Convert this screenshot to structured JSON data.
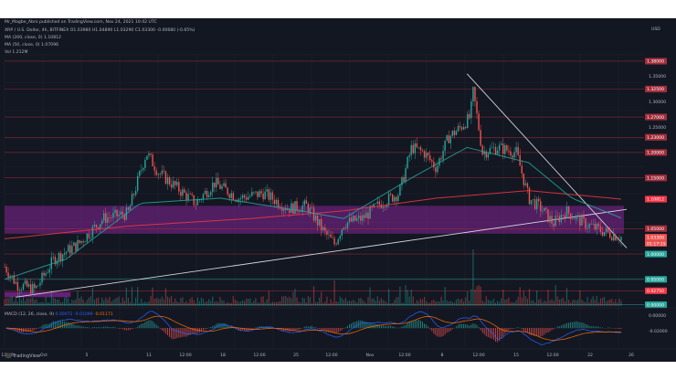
{
  "header": {
    "publisher": "Mr_Magbe_Abro published on TradingView.com, Nov 24, 2021 10:42 UTC",
    "symbol_line": "XRP / U.S. Dollar, 4h, BITFINEX O1.03980 H1.04890 L1.03290 C1.03300 -0.00680 (-0.65%)",
    "ma200": "MA (200, close, 0)  1.10812",
    "ma50": "MA (50, close, 0)  1.07096",
    "vol": "Vol  1.212M",
    "currency": "USD"
  },
  "footer": {
    "brand": "TradingView"
  },
  "colors": {
    "bull": "#26a69a",
    "bear": "#ef5350",
    "ma50": "#26a69a",
    "ma200": "#f23645",
    "zone": "#9c27b0",
    "trendline": "#d1d4dc"
  },
  "chart_data": {
    "type": "candlestick",
    "ylim": [
      0.8975,
      1.3925
    ],
    "date_range": [
      "2021-09-29",
      "2021-11-24"
    ],
    "x_ticks": [
      "12:00",
      "Oct",
      "5",
      "11",
      "12:00",
      "18",
      "12:00",
      "25",
      "12:00",
      "Nov",
      "12:00",
      "8",
      "12:00",
      "15",
      "12:00",
      "22",
      "26"
    ],
    "price_labels": [
      {
        "price": 1.38,
        "label": "1.38000",
        "kind": "level"
      },
      {
        "price": 1.325,
        "label": "1.32500",
        "kind": "level"
      },
      {
        "price": 1.27,
        "label": "1.27000",
        "kind": "level"
      },
      {
        "price": 1.23,
        "label": "1.23000",
        "kind": "level"
      },
      {
        "price": 1.2,
        "label": "1.20000",
        "kind": "level"
      },
      {
        "price": 1.15,
        "label": "1.15000",
        "kind": "level"
      },
      {
        "price": 1.10812,
        "label": "1.10812",
        "kind": "ma200"
      },
      {
        "price": 1.05,
        "label": "1.05000",
        "kind": "level"
      },
      {
        "price": 1.033,
        "label": "1.03300",
        "kind": "last"
      },
      {
        "price": 1.0,
        "label": "1.00000",
        "kind": "level"
      },
      {
        "price": 0.95,
        "label": "0.95000",
        "kind": "green"
      },
      {
        "price": 0.9275,
        "label": "0.92750",
        "kind": "red"
      },
      {
        "price": 0.9,
        "label": "0.90000",
        "kind": "green"
      }
    ],
    "grid_prices": [
      "1.35000",
      "1.30000",
      "1.25000"
    ],
    "countdown": "01:17:15",
    "macd": {
      "label": "MACD (12, 26, close, 9)",
      "values": [
        "0.00072",
        "-0.01099",
        "-0.01171"
      ],
      "ylim": [
        -0.045,
        0.045
      ],
      "ticks": [
        "0.00000",
        "-0.02000"
      ]
    },
    "zones": [
      {
        "name": "",
        "from": "2021-09-29",
        "to": "2021-11-24",
        "low": 1.04,
        "high": 1.095
      },
      {
        "name": "",
        "from": "2021-09-29",
        "to": "2021-10-05",
        "low": 0.915,
        "high": 0.925
      }
    ],
    "trendlines": [
      {
        "from": [
          "2021-09-30",
          0.915
        ],
        "to": [
          "2021-11-24",
          1.088
        ]
      },
      {
        "from": [
          "2021-11-10",
          1.355
        ],
        "to": [
          "2021-11-24",
          1.012
        ]
      }
    ],
    "series": [
      {
        "name": "MA (200, close, 0)",
        "values_note": "overlay",
        "start": 1.03,
        "points": [
          [
            0,
            1.03
          ],
          [
            0.2,
            1.055
          ],
          [
            0.4,
            1.07
          ],
          [
            0.55,
            1.085
          ],
          [
            0.7,
            1.11
          ],
          [
            0.85,
            1.125
          ],
          [
            1.0,
            1.10812
          ]
        ]
      },
      {
        "name": "MA (50, close, 0)",
        "values_note": "overlay",
        "start": 0.95,
        "points": [
          [
            0,
            0.95
          ],
          [
            0.1,
            0.99
          ],
          [
            0.22,
            1.1
          ],
          [
            0.35,
            1.11
          ],
          [
            0.48,
            1.085
          ],
          [
            0.55,
            1.07
          ],
          [
            0.66,
            1.15
          ],
          [
            0.75,
            1.21
          ],
          [
            0.85,
            1.18
          ],
          [
            0.92,
            1.11
          ],
          [
            1.0,
            1.07096
          ]
        ]
      }
    ],
    "path_anchors": [
      [
        0,
        0.975
      ],
      [
        0.02,
        0.94
      ],
      [
        0.05,
        0.93
      ],
      [
        0.08,
        0.99
      ],
      [
        0.12,
        1.02
      ],
      [
        0.16,
        1.07
      ],
      [
        0.2,
        1.08
      ],
      [
        0.23,
        1.2
      ],
      [
        0.25,
        1.16
      ],
      [
        0.28,
        1.13
      ],
      [
        0.31,
        1.1
      ],
      [
        0.34,
        1.14
      ],
      [
        0.38,
        1.11
      ],
      [
        0.42,
        1.12
      ],
      [
        0.46,
        1.09
      ],
      [
        0.49,
        1.095
      ],
      [
        0.52,
        1.04
      ],
      [
        0.535,
        1.02
      ],
      [
        0.55,
        1.06
      ],
      [
        0.58,
        1.07
      ],
      [
        0.61,
        1.1
      ],
      [
        0.64,
        1.12
      ],
      [
        0.66,
        1.21
      ],
      [
        0.68,
        1.2
      ],
      [
        0.7,
        1.17
      ],
      [
        0.72,
        1.23
      ],
      [
        0.74,
        1.25
      ],
      [
        0.755,
        1.27
      ],
      [
        0.76,
        1.32
      ],
      [
        0.775,
        1.2
      ],
      [
        0.8,
        1.21
      ],
      [
        0.83,
        1.2
      ],
      [
        0.85,
        1.11
      ],
      [
        0.87,
        1.09
      ],
      [
        0.89,
        1.06
      ],
      [
        0.91,
        1.085
      ],
      [
        0.94,
        1.06
      ],
      [
        0.97,
        1.045
      ],
      [
        1.0,
        1.033
      ]
    ]
  }
}
